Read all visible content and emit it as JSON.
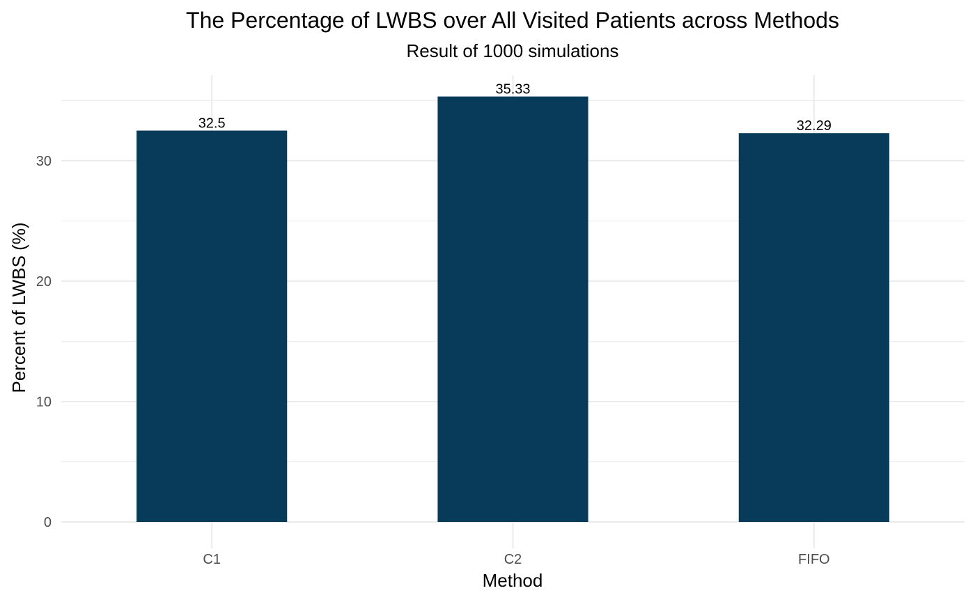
{
  "chart_data": {
    "type": "bar",
    "title": "The Percentage of LWBS over All Visited Patients across Methods",
    "subtitle": "Result of 1000 simulations",
    "xlabel": "Method",
    "ylabel": "Percent of LWBS (%)",
    "categories": [
      "C1",
      "C2",
      "FIFO"
    ],
    "values": [
      32.5,
      35.33,
      32.29
    ],
    "data_labels": [
      "32.5",
      "35.33",
      "32.29"
    ],
    "ylim": [
      0,
      37.1
    ],
    "yticks": [
      0,
      10,
      20,
      30
    ],
    "ytick_labels": [
      "0",
      "10",
      "20",
      "30"
    ],
    "grid": true,
    "legend": "none",
    "bar_color": "#073b59"
  }
}
